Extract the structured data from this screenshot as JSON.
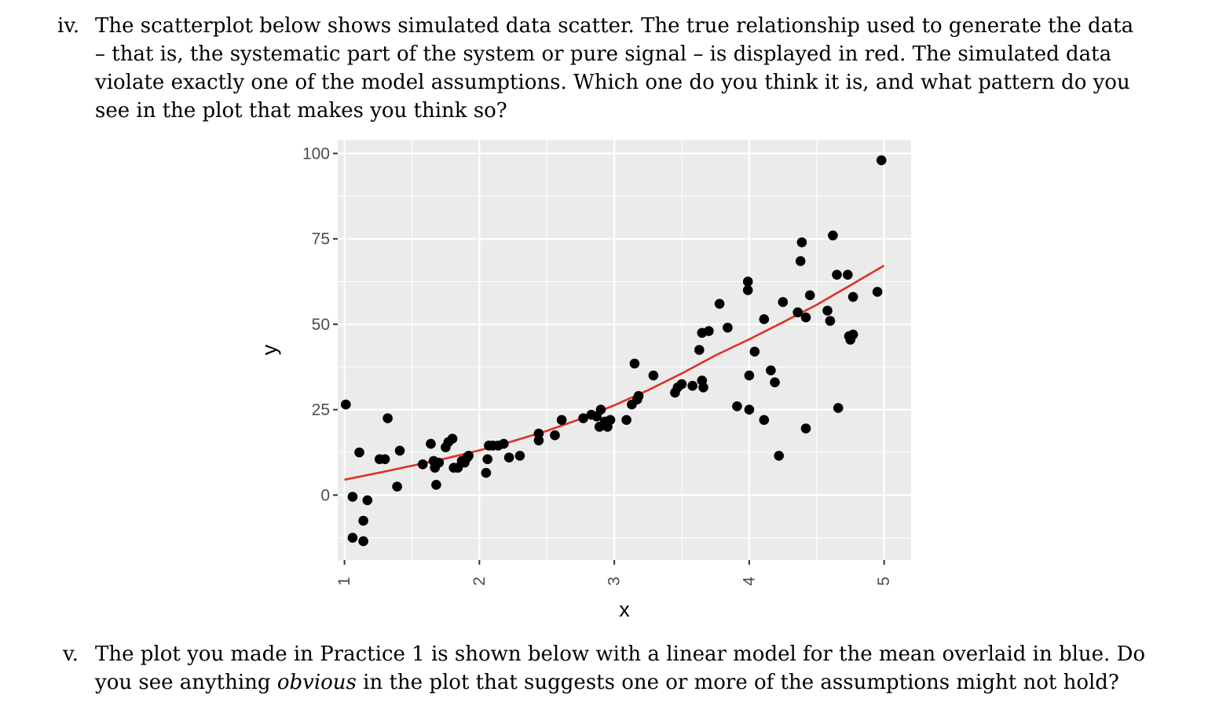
{
  "question_iv": {
    "number": "iv.",
    "lines": [
      "The scatterplot below shows simulated data scatter. The true relationship used to generate the data",
      "– that is, the systematic part of the system or pure signal – is displayed in red. The simulated data",
      "violate exactly one of the model assumptions. Which one do you think it is, and what pattern do you",
      "see in the plot that makes you think so?"
    ]
  },
  "question_v": {
    "number": "v.",
    "line1": "The plot you made in Practice 1 is shown below with a linear model for the mean overlaid in blue. Do",
    "line2_before": "you see anything ",
    "line2_emph": "obvious",
    "line2_after": " in the plot that suggests one or more of the assumptions might not hold?"
  },
  "chart_data": {
    "type": "scatter",
    "xlabel": "x",
    "ylabel": "y",
    "xlim": [
      0.95,
      5.2
    ],
    "ylim": [
      -19,
      104
    ],
    "x_ticks": [
      1,
      2,
      3,
      4,
      5
    ],
    "y_ticks": [
      0,
      25,
      50,
      75,
      100
    ],
    "grid": true,
    "background": "#EBEBEB",
    "point_color": "#000000",
    "curve_color": "#E03026",
    "true_relationship": {
      "x": [
        1.0,
        1.25,
        1.5,
        1.75,
        2.0,
        2.25,
        2.5,
        2.75,
        3.0,
        3.25,
        3.5,
        3.75,
        4.0,
        4.25,
        4.5,
        4.75,
        5.0
      ],
      "y": [
        4.5,
        6.5,
        8.6,
        10.7,
        13.1,
        15.8,
        18.8,
        22.3,
        26.3,
        30.7,
        35.6,
        40.9,
        45.6,
        50.6,
        55.7,
        61.4,
        67.2
      ]
    },
    "points": {
      "x": [
        1.01,
        1.06,
        1.06,
        1.11,
        1.14,
        1.14,
        1.17,
        1.26,
        1.3,
        1.32,
        1.39,
        1.41,
        1.58,
        1.64,
        1.66,
        1.67,
        1.68,
        1.7,
        1.75,
        1.77,
        1.8,
        1.81,
        1.84,
        1.87,
        1.89,
        1.91,
        1.92,
        2.05,
        2.06,
        2.07,
        2.1,
        2.14,
        2.18,
        2.22,
        2.3,
        2.44,
        2.44,
        2.56,
        2.61,
        2.77,
        2.83,
        2.87,
        2.89,
        2.9,
        2.93,
        2.95,
        2.97,
        3.09,
        3.13,
        3.15,
        3.17,
        3.18,
        3.29,
        3.45,
        3.47,
        3.5,
        3.58,
        3.63,
        3.65,
        3.65,
        3.66,
        3.7,
        3.78,
        3.84,
        3.91,
        3.99,
        3.99,
        4.0,
        4.0,
        4.04,
        4.11,
        4.11,
        4.16,
        4.19,
        4.22,
        4.25,
        4.36,
        4.38,
        4.39,
        4.42,
        4.42,
        4.45,
        4.58,
        4.6,
        4.62,
        4.65,
        4.66,
        4.73,
        4.74,
        4.75,
        4.77,
        4.77,
        4.95,
        4.98
      ],
      "y": [
        26.5,
        -0.5,
        -12.5,
        12.5,
        -7.5,
        -13.5,
        -1.5,
        10.5,
        10.5,
        22.5,
        2.5,
        13,
        9,
        15,
        10,
        8,
        3,
        9.5,
        14,
        15.5,
        16.5,
        8,
        8,
        10,
        9.5,
        11,
        11.5,
        6.5,
        10.5,
        14.5,
        14.5,
        14.5,
        15,
        11,
        11.5,
        16,
        18,
        17.5,
        22,
        22.5,
        23.5,
        23,
        20,
        25,
        21.5,
        20,
        22,
        22,
        26.5,
        38.5,
        28,
        29,
        35,
        30,
        31.5,
        32.5,
        32,
        42.5,
        47.5,
        33.5,
        31.5,
        48,
        56,
        49,
        26,
        62.5,
        60,
        25,
        35,
        42,
        51.5,
        22,
        36.5,
        33,
        11.5,
        56.5,
        53.5,
        68.5,
        74,
        52,
        19.5,
        58.5,
        54,
        51,
        76,
        64.5,
        25.5,
        64.5,
        46.5,
        45.5,
        47,
        58,
        59.5,
        98
      ]
    }
  }
}
